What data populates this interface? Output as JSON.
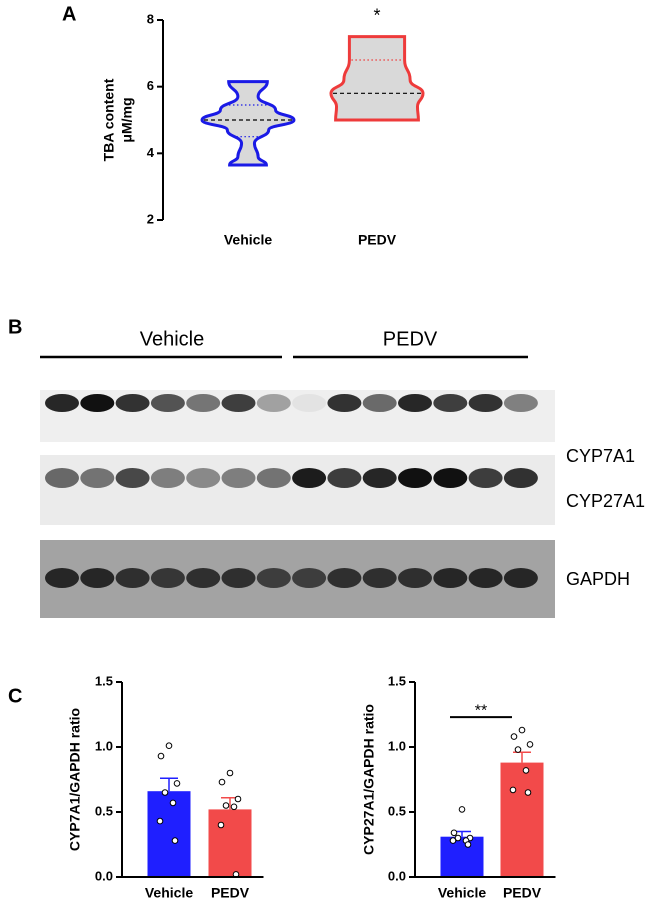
{
  "chart_data": [
    {
      "type": "violin",
      "panel_label": "A",
      "ylabel": [
        "TBA content",
        "μM/mg"
      ],
      "categories": [
        "Vehicle",
        "PEDV"
      ],
      "ylim": [
        2,
        8
      ],
      "yticks": [
        2,
        4,
        6,
        8
      ],
      "series": [
        {
          "color": "#1a1ae6",
          "fill": "#d9d9d9",
          "min": 3.65,
          "q1": 4.5,
          "median": 5.0,
          "q3": 5.45,
          "max": 6.15,
          "profile": [
            [
              3.65,
              0.4
            ],
            [
              3.9,
              0.22
            ],
            [
              4.3,
              0.14
            ],
            [
              4.7,
              0.45
            ],
            [
              5.0,
              1.0
            ],
            [
              5.3,
              0.6
            ],
            [
              5.7,
              0.22
            ],
            [
              6.15,
              0.42
            ]
          ]
        },
        {
          "color": "#ee3b3b",
          "fill": "#d9d9d9",
          "min": 5.0,
          "q1": 5.0,
          "median": 5.8,
          "q3": 6.8,
          "max": 7.5,
          "profile": [
            [
              5.0,
              0.9
            ],
            [
              5.4,
              0.88
            ],
            [
              5.8,
              1.0
            ],
            [
              6.2,
              0.72
            ],
            [
              6.8,
              0.6
            ],
            [
              7.5,
              0.6
            ]
          ]
        }
      ],
      "annotations": [
        {
          "text": "*",
          "category": 1
        }
      ]
    },
    {
      "type": "bar",
      "panel_label": "C",
      "ylabel": "CYP7A1/GAPDH ratio",
      "categories": [
        "Vehicle",
        "PEDV"
      ],
      "values": [
        0.66,
        0.52
      ],
      "errors": [
        0.1,
        0.09
      ],
      "colors": [
        "#1f1fff",
        "#f24a4a"
      ],
      "points": [
        [
          1.01,
          0.93,
          0.72,
          0.65,
          0.57,
          0.43,
          0.28
        ],
        [
          0.8,
          0.73,
          0.6,
          0.55,
          0.54,
          0.4,
          0.02
        ]
      ],
      "ylim": [
        0,
        1.5
      ],
      "yticks": [
        {
          "value": 0,
          "label": "0.0"
        },
        {
          "value": 0.5,
          "label": "0.5"
        },
        {
          "value": 1,
          "label": "1.0"
        },
        {
          "value": 1.5,
          "label": "1.5"
        }
      ]
    },
    {
      "type": "bar",
      "ylabel": "CYP27A1/GAPDH ratio",
      "categories": [
        "Vehicle",
        "PEDV"
      ],
      "values": [
        0.31,
        0.88
      ],
      "errors": [
        0.04,
        0.08
      ],
      "colors": [
        "#1f1fff",
        "#f24a4a"
      ],
      "points": [
        [
          0.52,
          0.34,
          0.3,
          0.3,
          0.28,
          0.28,
          0.25
        ],
        [
          1.13,
          1.08,
          1.02,
          0.98,
          0.82,
          0.67,
          0.65
        ]
      ],
      "ylim": [
        0,
        1.5
      ],
      "yticks": [
        {
          "value": 0,
          "label": "0.0"
        },
        {
          "value": 0.5,
          "label": "0.5"
        },
        {
          "value": 1,
          "label": "1.0"
        },
        {
          "value": 1.5,
          "label": "1.5"
        }
      ],
      "annotations": [
        {
          "text": "**",
          "from": 0,
          "to": 1
        }
      ]
    }
  ],
  "blot": {
    "panel_label": "B",
    "groups": [
      "Vehicle",
      "PEDV"
    ],
    "bands": [
      "CYP7A1",
      "CYP27A1",
      "GAPDH"
    ]
  }
}
